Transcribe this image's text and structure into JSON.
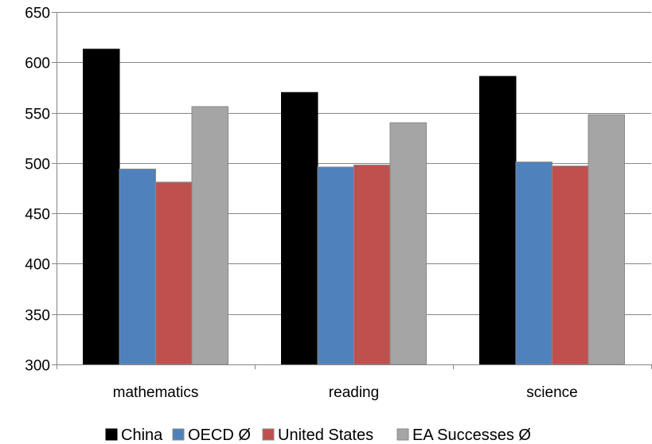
{
  "chart_data": {
    "type": "bar",
    "title": "",
    "xlabel": "",
    "ylabel": "",
    "categories": [
      "mathematics",
      "reading",
      "science"
    ],
    "ylim": [
      300,
      650
    ],
    "yticks": [
      300,
      350,
      400,
      450,
      500,
      550,
      600,
      650
    ],
    "grid": true,
    "legend_position": "bottom",
    "series": [
      {
        "name": "China",
        "color": "#000000",
        "values": [
          613,
          570,
          586
        ]
      },
      {
        "name": "OECD Ø",
        "color": "#4f81bd",
        "values": [
          494,
          496,
          501
        ]
      },
      {
        "name": "United States",
        "color": "#c0504d",
        "values": [
          481,
          498,
          497
        ]
      },
      {
        "name": "EA Successes Ø",
        "color": "#a5a5a5",
        "values": [
          556,
          540,
          548
        ]
      }
    ]
  }
}
